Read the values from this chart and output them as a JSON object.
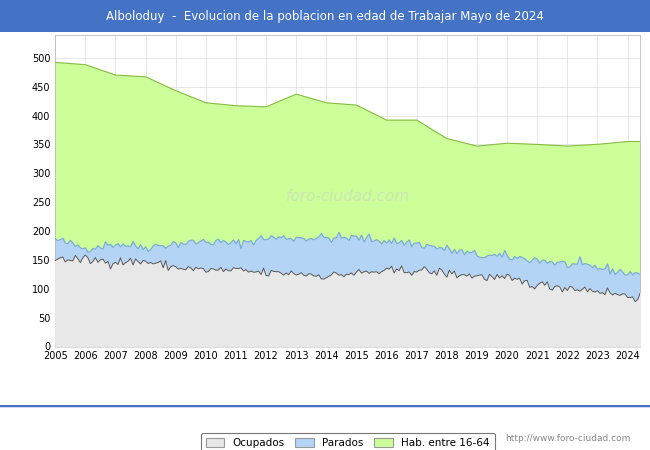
{
  "title": "Alboloduy  -  Evolucion de la poblacion en edad de Trabajar Mayo de 2024",
  "title_bg": "#4472c4",
  "title_color": "white",
  "ylim": [
    0,
    540
  ],
  "yticks": [
    0,
    50,
    100,
    150,
    200,
    250,
    300,
    350,
    400,
    450,
    500
  ],
  "years": [
    2005,
    2006,
    2007,
    2008,
    2009,
    2010,
    2011,
    2012,
    2013,
    2014,
    2015,
    2016,
    2017,
    2018,
    2019,
    2020,
    2021,
    2022,
    2023,
    2024
  ],
  "hab_16_64": [
    492,
    488,
    470,
    467,
    443,
    422,
    417,
    415,
    437,
    422,
    418,
    392,
    392,
    360,
    347,
    352,
    350,
    347,
    350,
    355
  ],
  "parados_upper": [
    185,
    170,
    178,
    172,
    178,
    182,
    178,
    188,
    188,
    188,
    188,
    183,
    178,
    168,
    158,
    155,
    150,
    142,
    137,
    127
  ],
  "ocupados_upper": [
    152,
    150,
    147,
    147,
    137,
    132,
    132,
    127,
    127,
    122,
    127,
    130,
    132,
    127,
    122,
    117,
    107,
    102,
    97,
    87
  ],
  "watermark": "http://www.foro-ciudad.com",
  "legend_labels": [
    "Ocupados",
    "Parados",
    "Hab. entre 16-64"
  ],
  "color_hab": "#ccff99",
  "color_parados": "#b3d4f5",
  "color_ocupados": "#e8e8e8",
  "line_color_hab": "#88bb44",
  "line_color_parados": "#7aaad0",
  "line_color_ocupados": "#555555",
  "grid_color": "#dddddd",
  "bg_plot": "white",
  "title_fontsize": 8.5,
  "tick_fontsize": 7,
  "watermark_color": "#aaaaaa"
}
